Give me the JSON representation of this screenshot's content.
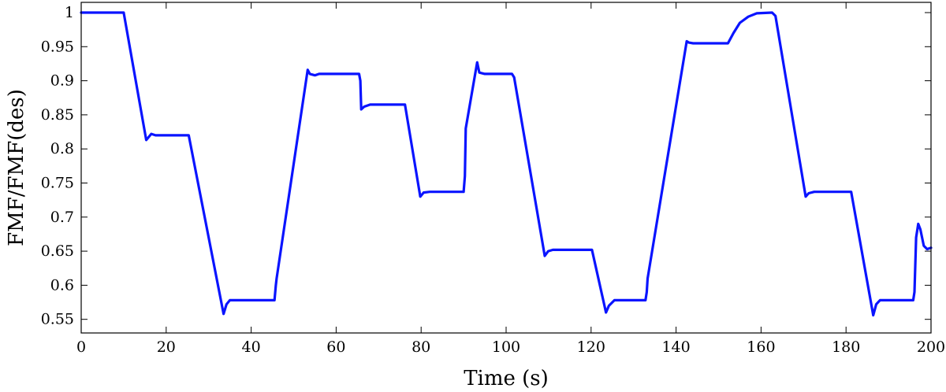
{
  "chart_data": {
    "type": "line",
    "title": "",
    "xlabel": "Time (s)",
    "ylabel": "FMF/FMF(des)",
    "xlim": [
      0,
      200
    ],
    "ylim": [
      0.53,
      1.015
    ],
    "grid": false,
    "x_ticks": [
      0,
      20,
      40,
      60,
      80,
      100,
      120,
      140,
      160,
      180,
      200
    ],
    "x_tick_labels": [
      "0",
      "20",
      "40",
      "60",
      "80",
      "100",
      "120",
      "140",
      "160",
      "180",
      "200"
    ],
    "y_ticks": [
      0.55,
      0.6,
      0.65,
      0.7,
      0.75,
      0.8,
      0.85,
      0.9,
      0.95,
      1.0
    ],
    "y_tick_labels": [
      "0.55",
      "0.6",
      "0.65",
      "0.7",
      "0.75",
      "0.8",
      "0.85",
      "0.9",
      "0.95",
      "1"
    ],
    "series": [
      {
        "color": "#0a14ff",
        "x": [
          0,
          10,
          15.3,
          16.5,
          17.5,
          25.3,
          33.5,
          34.2,
          35,
          45.5,
          45.8,
          46,
          53.3,
          53.8,
          55,
          56,
          65.4,
          65.7,
          65.9,
          66.6,
          68,
          76.2,
          79.8,
          80.6,
          82,
          90,
          90.3,
          90.5,
          93.2,
          93.7,
          95,
          101.4,
          101.9,
          109.1,
          109.9,
          111,
          120.2,
          123.5,
          124.2,
          125.5,
          132.8,
          133.1,
          133.3,
          142.5,
          143,
          144,
          152.2,
          153.5,
          155,
          157,
          159,
          162.6,
          163.4,
          170.5,
          171.2,
          172.5,
          181.2,
          186.4,
          187.1,
          188,
          195.8,
          196.1,
          196.5,
          197,
          197.5,
          198.3,
          199.1,
          200
        ],
        "y": [
          1.0,
          1.0,
          0.813,
          0.822,
          0.82,
          0.82,
          0.558,
          0.572,
          0.578,
          0.578,
          0.6,
          0.61,
          0.916,
          0.91,
          0.908,
          0.91,
          0.91,
          0.9,
          0.858,
          0.862,
          0.865,
          0.865,
          0.73,
          0.736,
          0.737,
          0.737,
          0.76,
          0.83,
          0.927,
          0.912,
          0.91,
          0.91,
          0.905,
          0.643,
          0.65,
          0.652,
          0.652,
          0.56,
          0.57,
          0.578,
          0.578,
          0.59,
          0.61,
          0.958,
          0.956,
          0.955,
          0.955,
          0.97,
          0.985,
          0.994,
          0.999,
          1.0,
          0.995,
          0.73,
          0.735,
          0.737,
          0.737,
          0.556,
          0.572,
          0.578,
          0.578,
          0.59,
          0.67,
          0.69,
          0.682,
          0.658,
          0.653,
          0.655
        ]
      }
    ]
  }
}
